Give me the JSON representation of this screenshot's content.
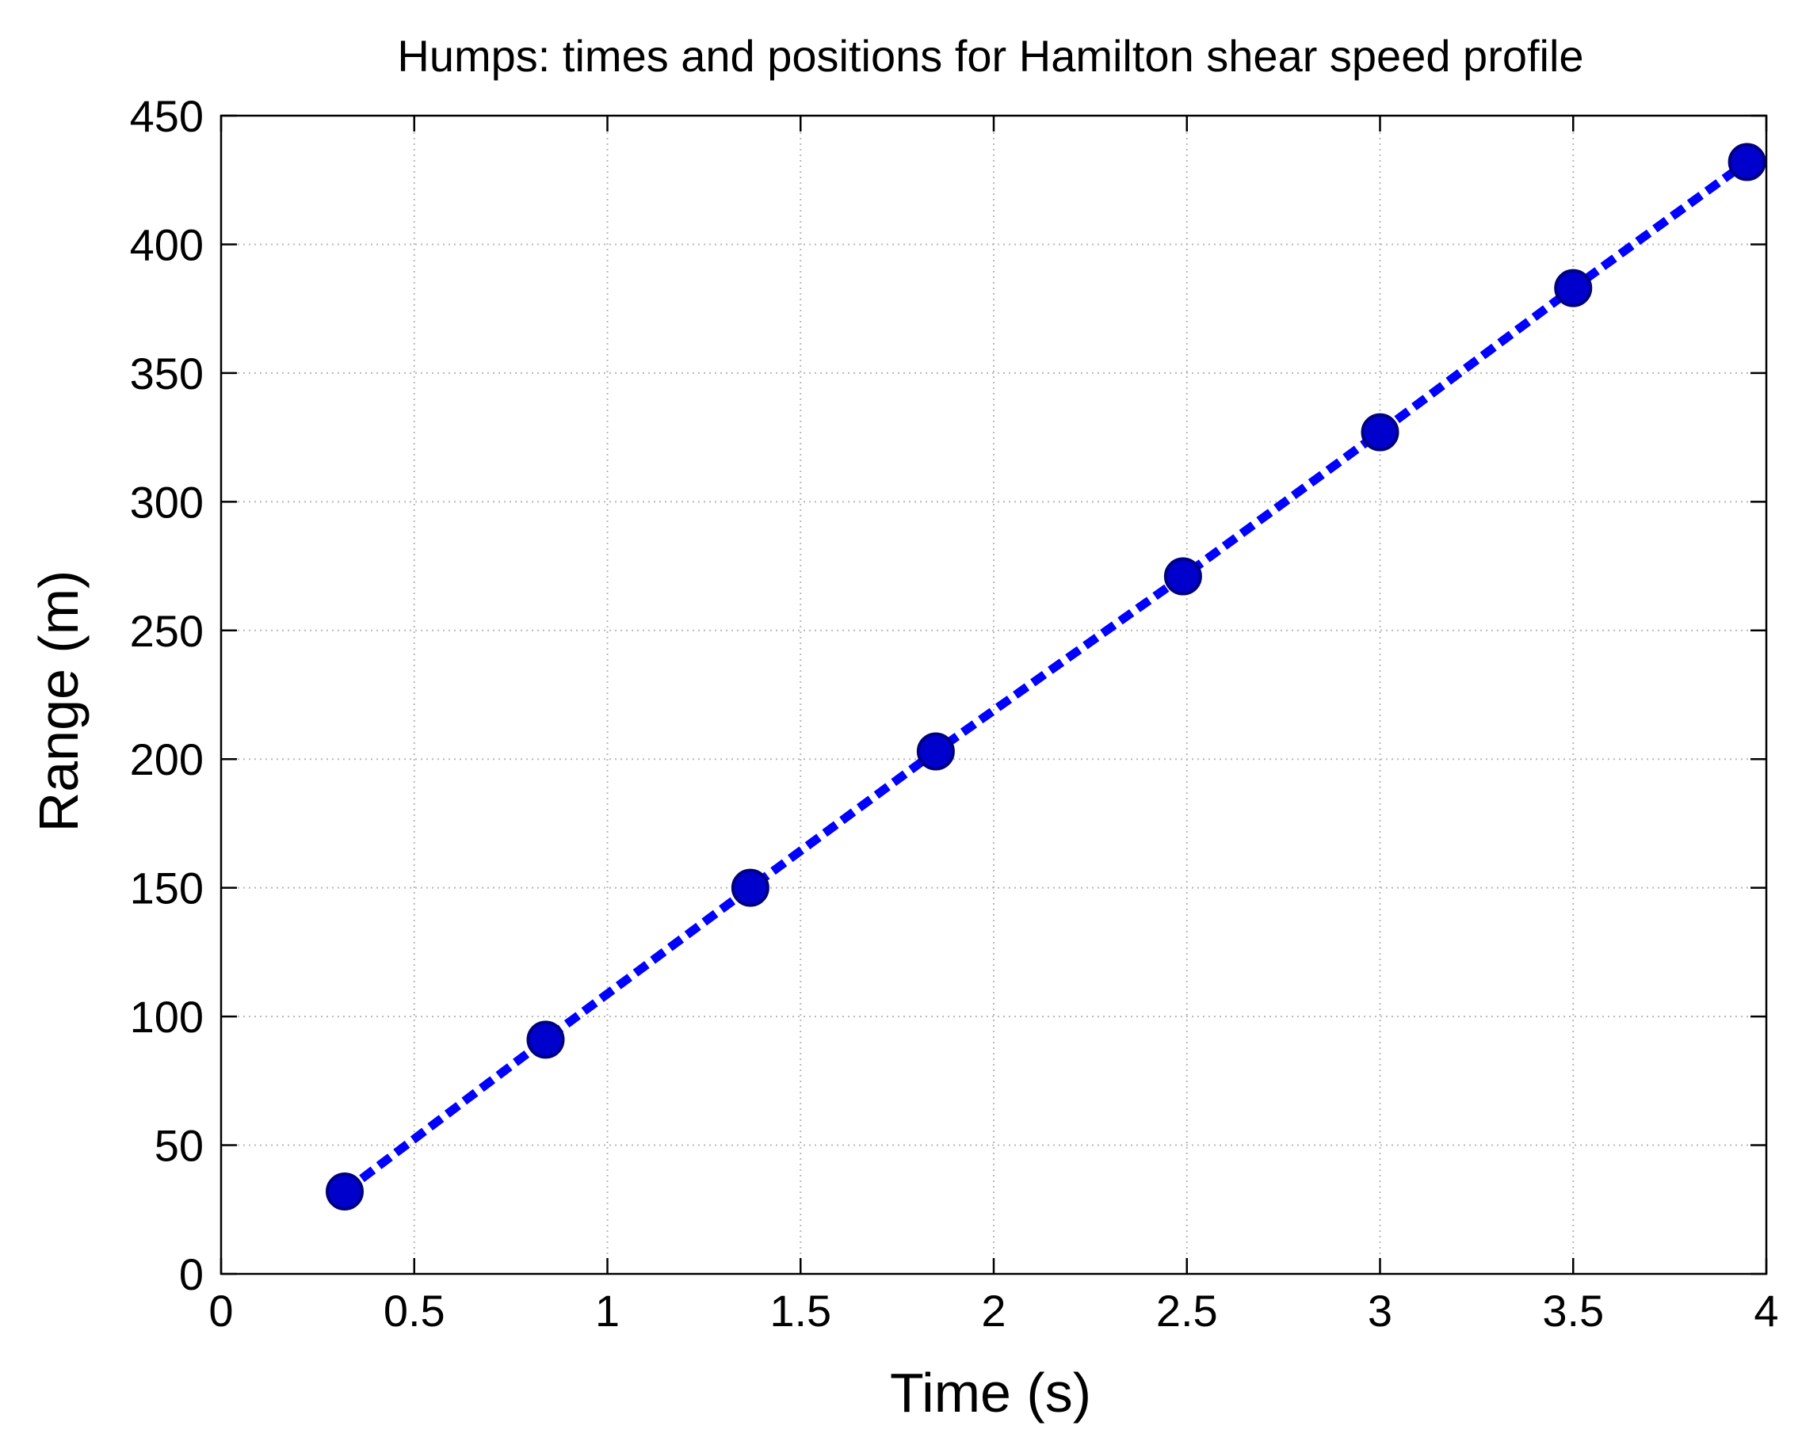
{
  "chart_data": {
    "type": "line",
    "title": "Humps: times and positions for Hamilton shear speed profile",
    "xlabel": "Time (s)",
    "ylabel": "Range (m)",
    "xlim": [
      0,
      4
    ],
    "ylim": [
      0,
      450
    ],
    "xticks": [
      0,
      0.5,
      1,
      1.5,
      2,
      2.5,
      3,
      3.5,
      4
    ],
    "xtick_labels": [
      "0",
      "0.5",
      "1",
      "1.5",
      "2",
      "2.5",
      "3",
      "3.5",
      "4"
    ],
    "yticks": [
      0,
      50,
      100,
      150,
      200,
      250,
      300,
      350,
      400,
      450
    ],
    "ytick_labels": [
      "0",
      "50",
      "100",
      "150",
      "200",
      "250",
      "300",
      "350",
      "400",
      "450"
    ],
    "grid": true,
    "grid_style": "dotted",
    "series": [
      {
        "x": [
          0.32,
          0.84,
          1.37,
          1.85,
          2.49,
          3.0,
          3.5,
          3.95
        ],
        "y": [
          32,
          91,
          150,
          203,
          271,
          327,
          383,
          432
        ],
        "color": "#0000ff",
        "marker_color": "#0000cc",
        "marker_edge_color": "#000080",
        "line_style": "dashed",
        "marker": "circle"
      }
    ]
  }
}
